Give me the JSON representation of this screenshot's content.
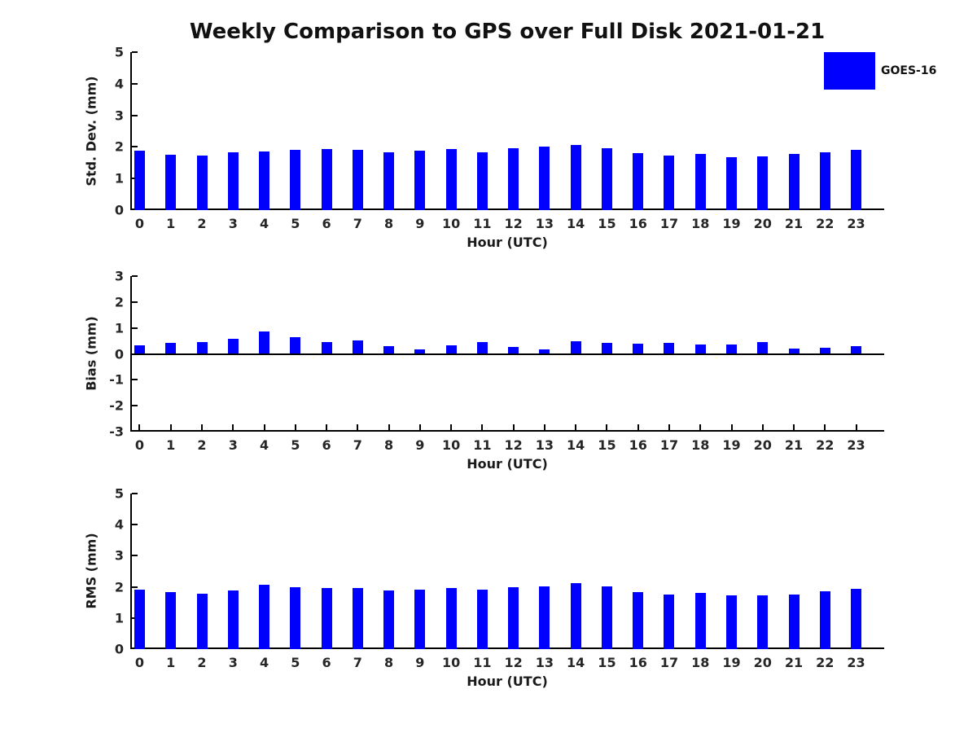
{
  "title": "Weekly Comparison to GPS over Full Disk 2021-01-21",
  "legend": {
    "label": "GOES-16",
    "color": "#0000ff"
  },
  "chart_data": [
    {
      "type": "bar",
      "series_name": "GOES-16",
      "bar_color": "#0000ff",
      "ylabel": "Std. Dev. (mm)",
      "xlabel": "Hour (UTC)",
      "categories": [
        "0",
        "1",
        "2",
        "3",
        "4",
        "5",
        "6",
        "7",
        "8",
        "9",
        "10",
        "11",
        "12",
        "13",
        "14",
        "15",
        "16",
        "17",
        "18",
        "19",
        "20",
        "21",
        "22",
        "23"
      ],
      "values": [
        1.87,
        1.76,
        1.73,
        1.82,
        1.86,
        1.9,
        1.93,
        1.9,
        1.84,
        1.89,
        1.94,
        1.84,
        1.96,
        2.0,
        2.05,
        1.97,
        1.81,
        1.72,
        1.77,
        1.68,
        1.69,
        1.77,
        1.84,
        1.92
      ],
      "ylim": [
        0,
        5
      ],
      "yticks": [
        0,
        1,
        2,
        3,
        4,
        5
      ],
      "grid": false,
      "legend_position": "upper right outside",
      "show_x_tick_marks": false
    },
    {
      "type": "bar",
      "series_name": "GOES-16",
      "bar_color": "#0000ff",
      "ylabel": "Bias (mm)",
      "xlabel": "Hour (UTC)",
      "categories": [
        "0",
        "1",
        "2",
        "3",
        "4",
        "5",
        "6",
        "7",
        "8",
        "9",
        "10",
        "11",
        "12",
        "13",
        "14",
        "15",
        "16",
        "17",
        "18",
        "19",
        "20",
        "21",
        "22",
        "23"
      ],
      "values": [
        0.34,
        0.41,
        0.45,
        0.57,
        0.85,
        0.65,
        0.46,
        0.52,
        0.31,
        0.18,
        0.34,
        0.46,
        0.27,
        0.18,
        0.5,
        0.43,
        0.39,
        0.43,
        0.37,
        0.37,
        0.47,
        0.19,
        0.24,
        0.31
      ],
      "ylim": [
        -3,
        3
      ],
      "yticks": [
        -3,
        -2,
        -1,
        0,
        1,
        2,
        3
      ],
      "grid": false,
      "zero_line": true,
      "show_x_tick_marks": true
    },
    {
      "type": "bar",
      "series_name": "GOES-16",
      "bar_color": "#0000ff",
      "ylabel": "RMS (mm)",
      "xlabel": "Hour (UTC)",
      "categories": [
        "0",
        "1",
        "2",
        "3",
        "4",
        "5",
        "6",
        "7",
        "8",
        "9",
        "10",
        "11",
        "12",
        "13",
        "14",
        "15",
        "16",
        "17",
        "18",
        "19",
        "20",
        "21",
        "22",
        "23"
      ],
      "values": [
        1.9,
        1.82,
        1.79,
        1.89,
        2.06,
        2.0,
        1.97,
        1.97,
        1.89,
        1.92,
        1.96,
        1.92,
        2.0,
        2.02,
        2.11,
        2.01,
        1.84,
        1.75,
        1.81,
        1.72,
        1.72,
        1.75,
        1.86,
        1.95
      ],
      "ylim": [
        0,
        5
      ],
      "yticks": [
        0,
        1,
        2,
        3,
        4,
        5
      ],
      "grid": false,
      "show_x_tick_marks": false
    }
  ]
}
